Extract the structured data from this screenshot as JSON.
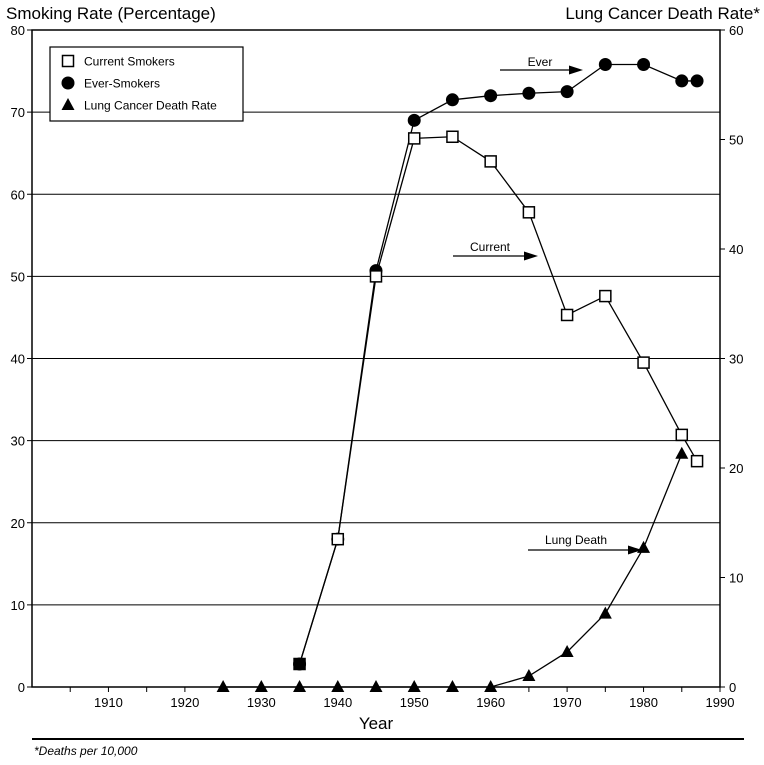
{
  "chart_data": {
    "type": "line",
    "left_axis_title": "Smoking Rate (Percentage)",
    "right_axis_title": "Lung Cancer Death Rate*",
    "xlabel": "Year",
    "footnote": "*Deaths per 10,000",
    "xlim": [
      1900,
      1990
    ],
    "ylim_left": [
      0,
      80
    ],
    "ylim_right": [
      0,
      60
    ],
    "x_ticks": [
      1910,
      1920,
      1930,
      1940,
      1950,
      1960,
      1970,
      1980,
      1990
    ],
    "y_ticks_left": [
      0,
      10,
      20,
      30,
      40,
      50,
      60,
      70,
      80
    ],
    "y_ticks_right": [
      0,
      10,
      20,
      30,
      40,
      50,
      60
    ],
    "horizontal_grid": true,
    "legend_position": "top-left",
    "series": [
      {
        "name": "Current Smokers",
        "marker": "open-square",
        "axis": "left",
        "x": [
          1935,
          1940,
          1945,
          1950,
          1955,
          1960,
          1965,
          1970,
          1975,
          1980,
          1985,
          1987
        ],
        "y": [
          2.8,
          18,
          50,
          66.8,
          67,
          64,
          57.8,
          45.3,
          47.6,
          39.5,
          30.7,
          27.5
        ]
      },
      {
        "name": "Ever-Smokers",
        "marker": "filled-circle",
        "axis": "left",
        "x": [
          1935,
          1940,
          1945,
          1950,
          1955,
          1960,
          1965,
          1970,
          1975,
          1980,
          1985,
          1987
        ],
        "y": [
          2.8,
          18,
          50.7,
          69,
          71.5,
          72,
          72.3,
          72.5,
          75.8,
          75.8,
          73.8,
          73.8
        ]
      },
      {
        "name": "Lung Cancer Death Rate",
        "marker": "filled-triangle",
        "axis": "right",
        "x": [
          1925,
          1930,
          1935,
          1940,
          1945,
          1950,
          1955,
          1960,
          1965,
          1970,
          1975,
          1980,
          1985
        ],
        "y": [
          0,
          0,
          0,
          0,
          0,
          0,
          0,
          0,
          1,
          3.2,
          6.7,
          12.7,
          21.3
        ]
      }
    ],
    "annotations": [
      {
        "text": "Ever",
        "series": "Ever-Smokers"
      },
      {
        "text": "Current",
        "series": "Current Smokers"
      },
      {
        "text": "Lung Death",
        "series": "Lung Cancer Death Rate"
      }
    ]
  }
}
